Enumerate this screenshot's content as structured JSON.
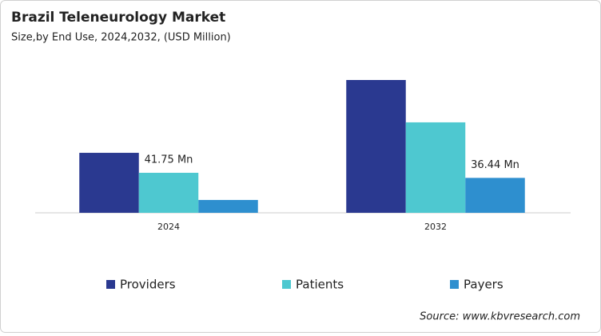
{
  "chart_data": {
    "type": "bar",
    "title": "Brazil Teleneurology Market",
    "subtitle": "Size,by End Use, 2024,2032, (USD Million)",
    "categories": [
      "2024",
      "2032"
    ],
    "series": [
      {
        "name": "Providers",
        "color": "#2a3990",
        "values": [
          62.6,
          138.6
        ]
      },
      {
        "name": "Patients",
        "color": "#4ec8d0",
        "values": [
          41.75,
          94.4
        ],
        "value_labels": [
          "41.75 Mn",
          null
        ]
      },
      {
        "name": "Payers",
        "color": "#2e8fcf",
        "values": [
          13.4,
          36.44
        ],
        "value_labels": [
          null,
          "36.44 Mn"
        ]
      }
    ],
    "source": "Source: www.kbvresearch.com"
  }
}
